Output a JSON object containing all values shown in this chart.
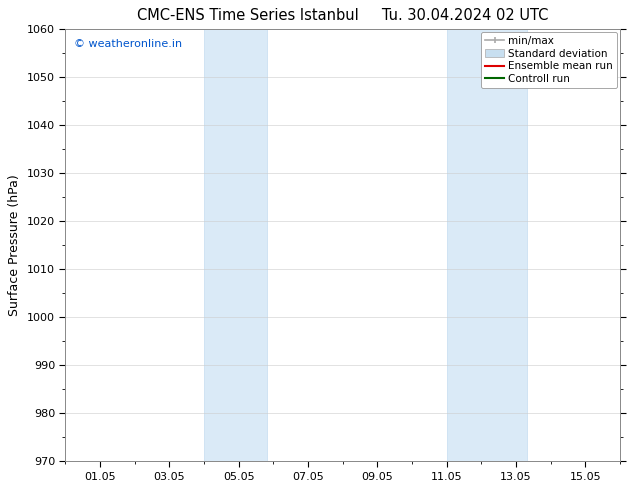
{
  "title": "CMC-ENS Time Series Istanbul     Tu. 30.04.2024 02 UTC",
  "ylabel": "Surface Pressure (hPa)",
  "ylim": [
    970,
    1060
  ],
  "yticks": [
    970,
    980,
    990,
    1000,
    1010,
    1020,
    1030,
    1040,
    1050,
    1060
  ],
  "xlim": [
    0.0,
    16.0
  ],
  "xtick_labels": [
    "01.05",
    "03.05",
    "05.05",
    "07.05",
    "09.05",
    "11.05",
    "13.05",
    "15.05"
  ],
  "xtick_positions": [
    1,
    3,
    5,
    7,
    9,
    11,
    13,
    15
  ],
  "shaded_regions": [
    {
      "x_start": 4.0,
      "x_end": 5.8
    },
    {
      "x_start": 11.0,
      "x_end": 13.3
    }
  ],
  "shaded_color": "#daeaf7",
  "shaded_edge_color": "#c5ddf0",
  "watermark_text": "© weatheronline.in",
  "watermark_color": "#0055cc",
  "background_color": "#ffffff",
  "plot_bg_color": "#ffffff",
  "grid_color": "#cccccc",
  "grid_lw": 0.4,
  "spine_color": "#888888",
  "spine_lw": 0.7,
  "legend_items": [
    {
      "label": "min/max",
      "color": "#aaaaaa",
      "lw": 1.2
    },
    {
      "label": "Standard deviation",
      "color": "#c8dff0",
      "lw": 8
    },
    {
      "label": "Ensemble mean run",
      "color": "#dd0000",
      "lw": 1.5
    },
    {
      "label": "Controll run",
      "color": "#006600",
      "lw": 1.5
    }
  ],
  "title_fontsize": 10.5,
  "axis_label_fontsize": 9,
  "tick_fontsize": 8,
  "legend_fontsize": 7.5,
  "watermark_fontsize": 8
}
